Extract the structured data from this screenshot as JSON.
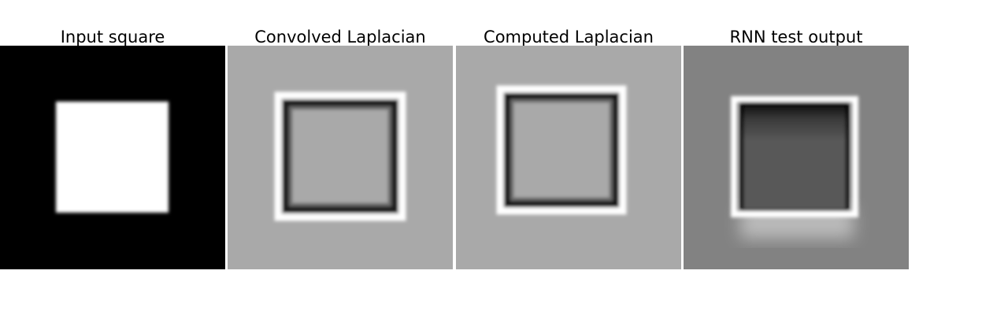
{
  "panels": [
    {
      "title": "Input square"
    },
    {
      "title": "Convolved Laplacian"
    },
    {
      "title": "Computed Laplacian"
    },
    {
      "title": "RNN test output"
    }
  ],
  "colors": {
    "input_background": "#000000",
    "input_square": "#ffffff",
    "laplacian_background": "#a9a9a9",
    "laplacian_dark_edge": "#1a1a1a",
    "laplacian_light_edge": "#ffffff",
    "rnn_background": "#828282",
    "rnn_square": "#595959",
    "rnn_dark_edge": "#050505",
    "rnn_light_edge": "#ffffff"
  }
}
